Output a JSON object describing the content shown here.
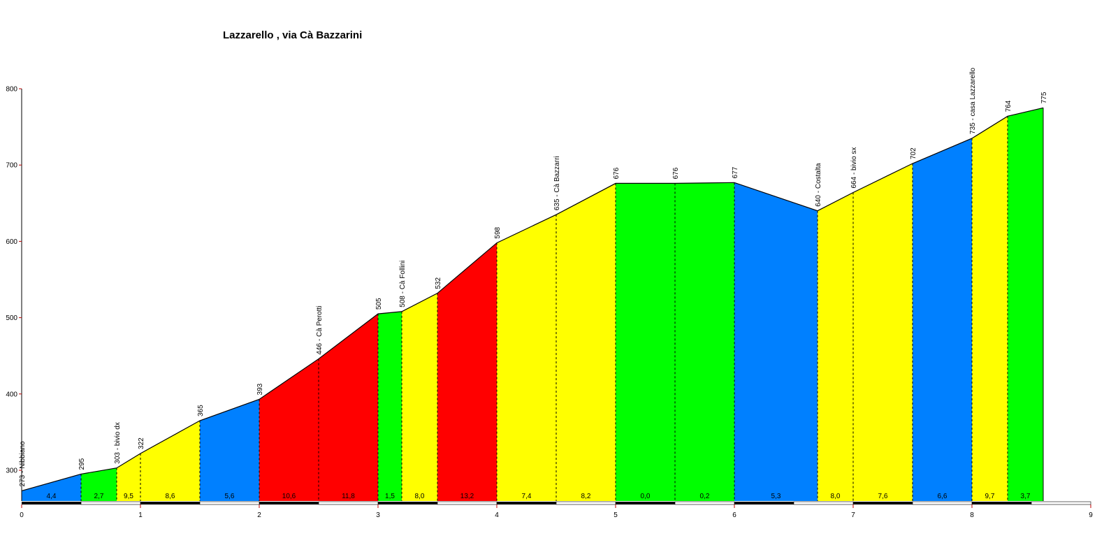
{
  "chart_data": {
    "type": "area",
    "title": "Lazzarello , via Cà Bazzarini",
    "xlabel": "",
    "ylabel": "",
    "xlim": [
      0,
      9
    ],
    "ylim": [
      255,
      800
    ],
    "x_ticks": [
      "0",
      "1",
      "2",
      "3",
      "4",
      "5",
      "6",
      "7",
      "8",
      "9"
    ],
    "y_ticks": [
      "300",
      "400",
      "500",
      "600",
      "700",
      "800"
    ],
    "colors": {
      "green": "#00ff00",
      "yellow": "#ffff00",
      "blue": "#0080ff",
      "red": "#ff0000"
    },
    "points": [
      {
        "x": 0.0,
        "elev": 273,
        "label": "273 - Nibbiano"
      },
      {
        "x": 0.5,
        "elev": 295,
        "label": "295"
      },
      {
        "x": 0.8,
        "elev": 303,
        "label": "303 - bivio dx"
      },
      {
        "x": 1.0,
        "elev": 322,
        "label": "322"
      },
      {
        "x": 1.5,
        "elev": 365,
        "label": "365"
      },
      {
        "x": 2.0,
        "elev": 393,
        "label": "393"
      },
      {
        "x": 2.5,
        "elev": 446,
        "label": "446 - Cà Perotti"
      },
      {
        "x": 3.0,
        "elev": 505,
        "label": "505"
      },
      {
        "x": 3.2,
        "elev": 508,
        "label": "508 - Cà Follini"
      },
      {
        "x": 3.5,
        "elev": 532,
        "label": "532"
      },
      {
        "x": 4.0,
        "elev": 598,
        "label": "598"
      },
      {
        "x": 4.5,
        "elev": 635,
        "label": "635 - Cà Bazzarri"
      },
      {
        "x": 5.0,
        "elev": 676,
        "label": "676"
      },
      {
        "x": 5.5,
        "elev": 676,
        "label": "676"
      },
      {
        "x": 6.0,
        "elev": 677,
        "label": "677"
      },
      {
        "x": 6.7,
        "elev": 640,
        "label": "640 - Costalta"
      },
      {
        "x": 7.0,
        "elev": 664,
        "label": "664 - bivio sx"
      },
      {
        "x": 7.5,
        "elev": 702,
        "label": "702"
      },
      {
        "x": 8.0,
        "elev": 735,
        "label": "735 - casa Lazzarello"
      },
      {
        "x": 8.3,
        "elev": 764,
        "label": "764"
      },
      {
        "x": 8.6,
        "elev": 775,
        "label": "775"
      }
    ],
    "segments": [
      {
        "gradient": "4,4",
        "color": "blue"
      },
      {
        "gradient": "2,7",
        "color": "green"
      },
      {
        "gradient": "9,5",
        "color": "yellow"
      },
      {
        "gradient": "8,6",
        "color": "yellow"
      },
      {
        "gradient": "5,6",
        "color": "blue"
      },
      {
        "gradient": "10,6",
        "color": "red"
      },
      {
        "gradient": "11,8",
        "color": "red"
      },
      {
        "gradient": "1,5",
        "color": "green"
      },
      {
        "gradient": "8,0",
        "color": "yellow"
      },
      {
        "gradient": "13,2",
        "color": "red"
      },
      {
        "gradient": "7,4",
        "color": "yellow"
      },
      {
        "gradient": "8,2",
        "color": "yellow"
      },
      {
        "gradient": "0,0",
        "color": "green"
      },
      {
        "gradient": "0,2",
        "color": "green"
      },
      {
        "gradient": "5,3",
        "color": "blue"
      },
      {
        "gradient": "8,0",
        "color": "yellow"
      },
      {
        "gradient": "7,6",
        "color": "yellow"
      },
      {
        "gradient": "6,6",
        "color": "blue"
      },
      {
        "gradient": "9,7",
        "color": "yellow"
      },
      {
        "gradient": "3,7",
        "color": "green"
      }
    ],
    "grid": false,
    "legend": "none"
  }
}
